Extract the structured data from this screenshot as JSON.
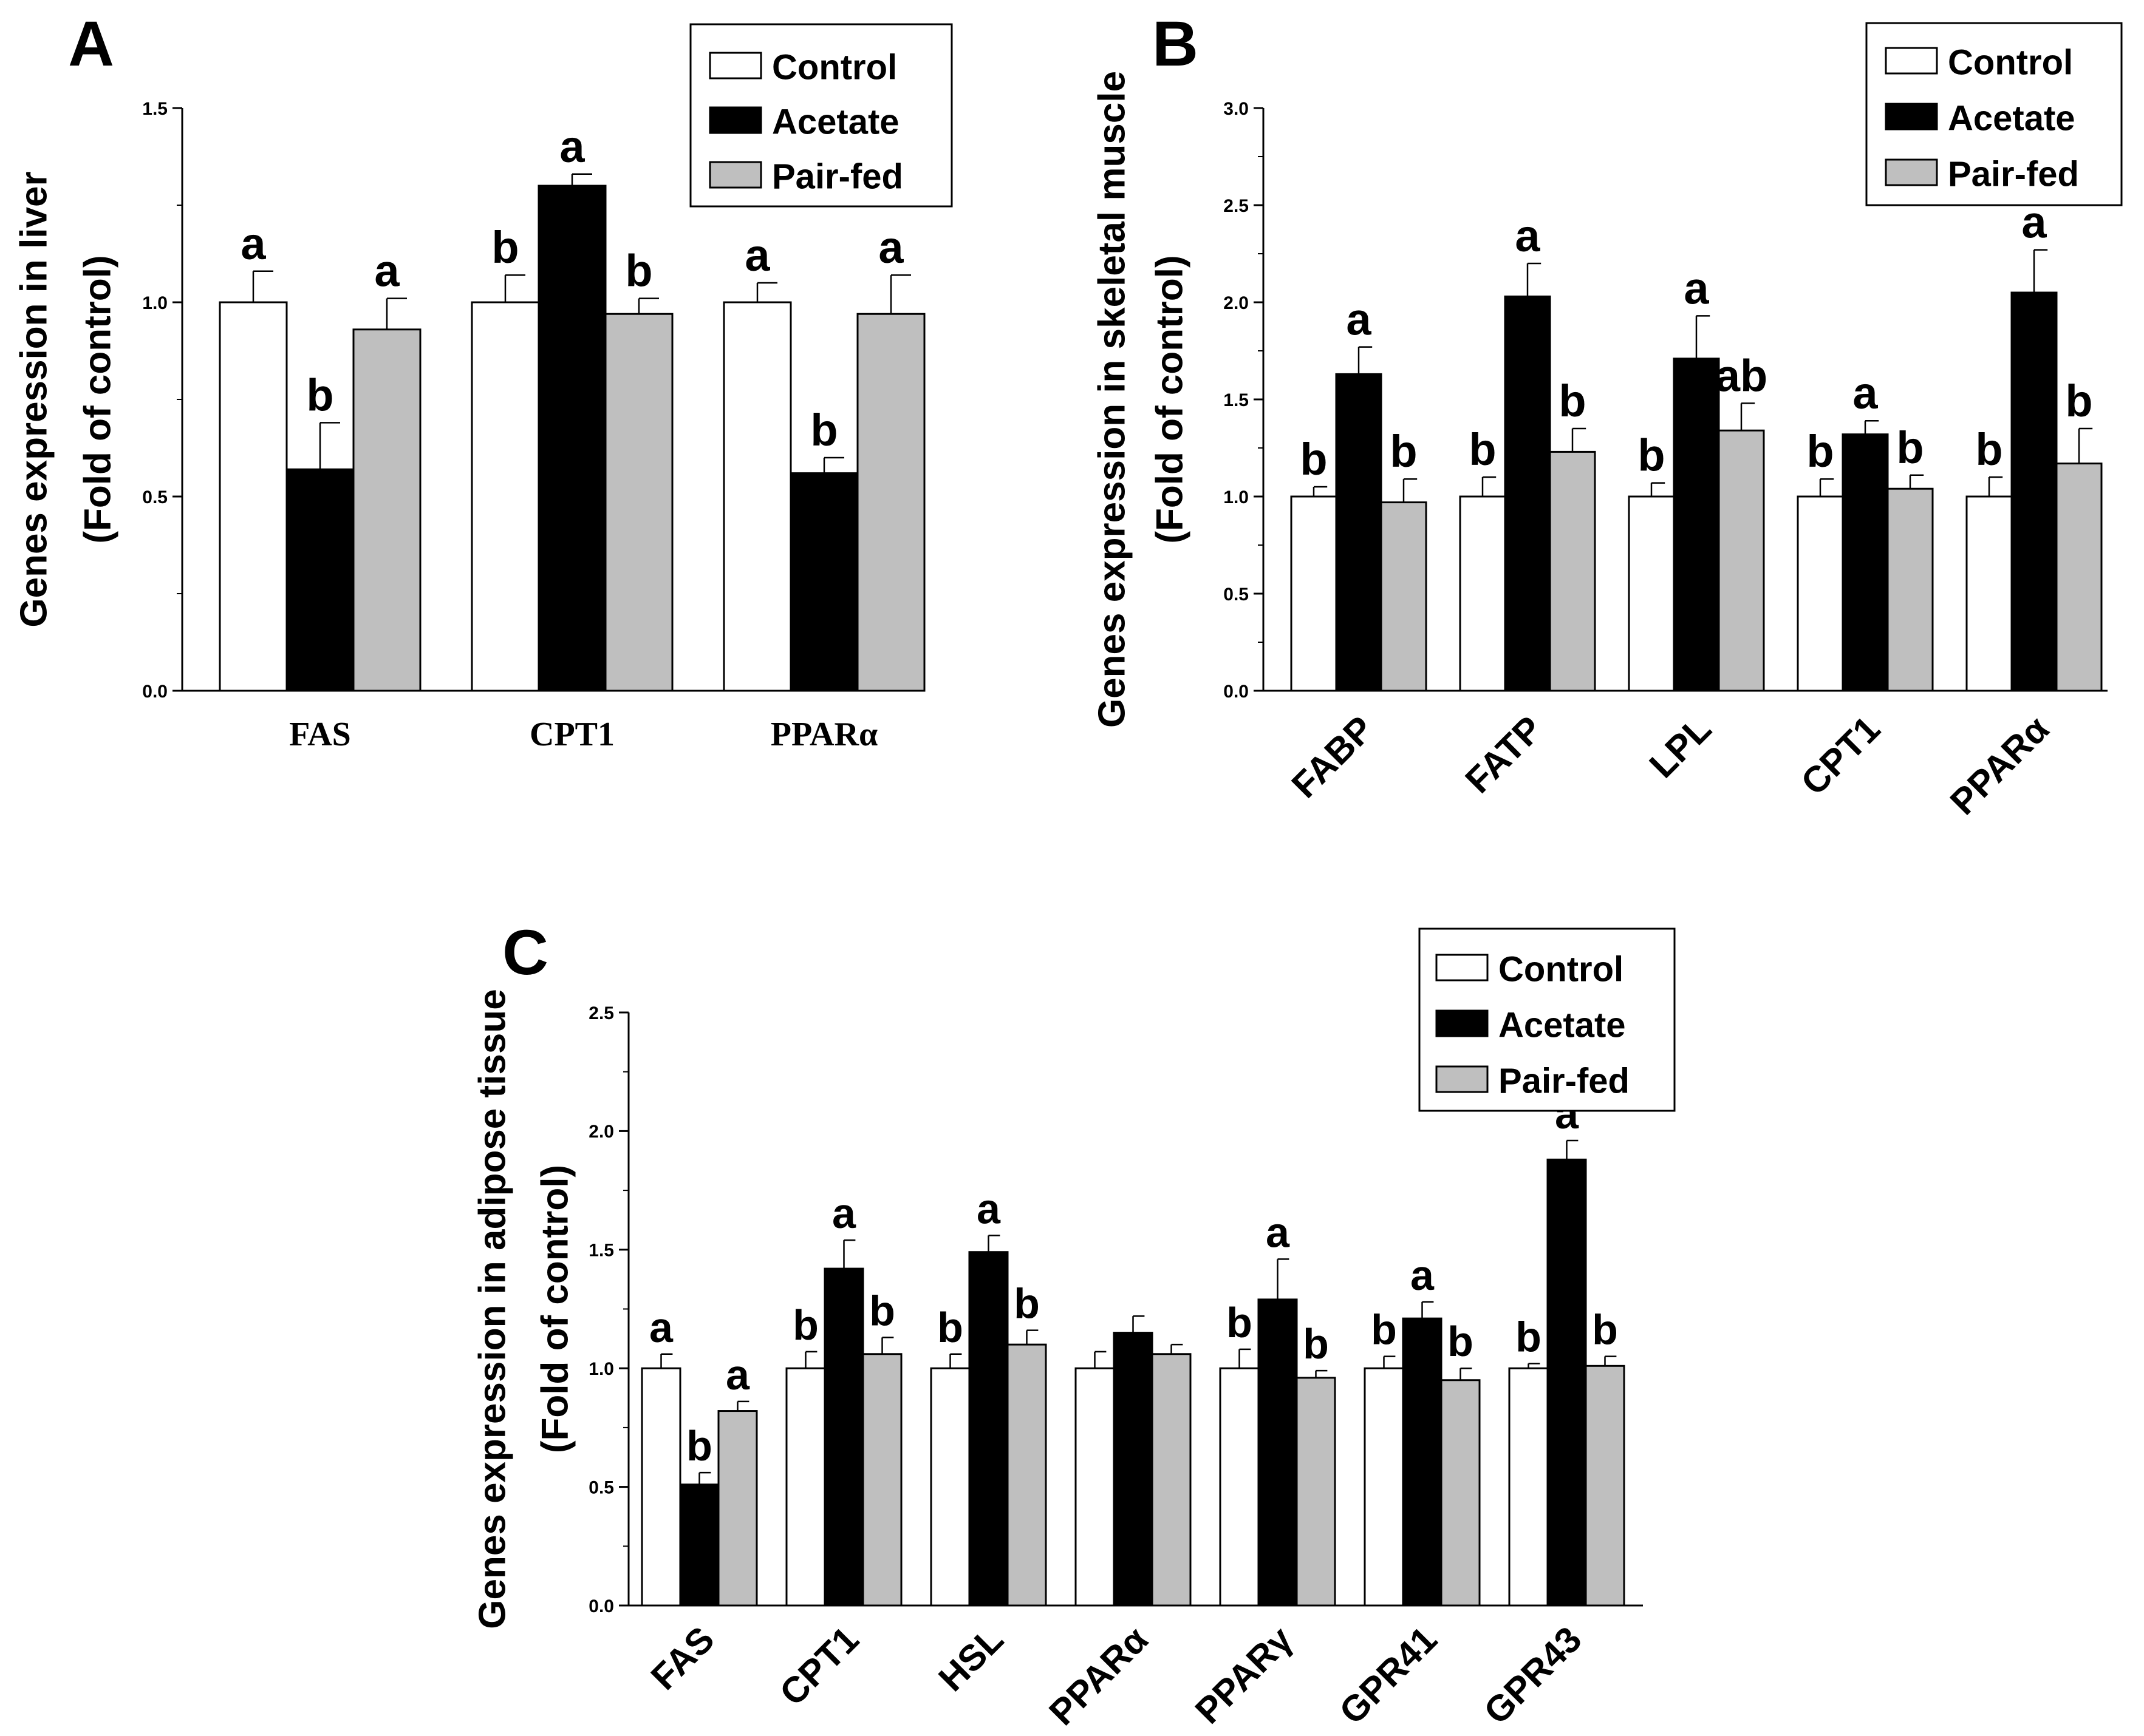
{
  "legend": [
    "Control",
    "Acetate",
    "Pair-fed"
  ],
  "colors": {
    "Control": "#ffffff",
    "Acetate": "#000000",
    "Pair-fed": "#bfbfbf"
  },
  "chart_data": [
    {
      "panel_label": "A",
      "type": "bar",
      "ylabel_line1": "Genes expression in liver",
      "ylabel_line2": "(Fold of control)",
      "ylim": [
        0,
        1.5
      ],
      "yticks": [
        "0.0",
        "0.5",
        "1.0",
        "1.5"
      ],
      "categories": [
        "FAS",
        "CPT1",
        "PPARα"
      ],
      "series": [
        {
          "name": "Control",
          "values": [
            1.0,
            1.0,
            1.0
          ],
          "errors": [
            0.08,
            0.07,
            0.05
          ],
          "letters": [
            "a",
            "b",
            "a"
          ]
        },
        {
          "name": "Acetate",
          "values": [
            0.57,
            1.3,
            0.56
          ],
          "errors": [
            0.12,
            0.03,
            0.04
          ],
          "letters": [
            "b",
            "a",
            "b"
          ]
        },
        {
          "name": "Pair-fed",
          "values": [
            0.93,
            0.97,
            0.97
          ],
          "errors": [
            0.08,
            0.04,
            0.1
          ],
          "letters": [
            "a",
            "b",
            "a"
          ]
        }
      ]
    },
    {
      "panel_label": "B",
      "type": "bar",
      "ylabel_line1": "Genes expression in skeletal muscle",
      "ylabel_line2": "(Fold of control)",
      "ylim": [
        0,
        3.0
      ],
      "yticks": [
        "0.0",
        "0.5",
        "1.0",
        "1.5",
        "2.0",
        "2.5",
        "3.0"
      ],
      "categories": [
        "FABP",
        "FATP",
        "LPL",
        "CPT1",
        "PPARα"
      ],
      "series": [
        {
          "name": "Control",
          "values": [
            1.0,
            1.0,
            1.0,
            1.0,
            1.0
          ],
          "errors": [
            0.05,
            0.1,
            0.07,
            0.09,
            0.1
          ],
          "letters": [
            "b",
            "b",
            "b",
            "b",
            "b"
          ]
        },
        {
          "name": "Acetate",
          "values": [
            1.63,
            2.03,
            1.71,
            1.32,
            2.05
          ],
          "errors": [
            0.14,
            0.17,
            0.22,
            0.07,
            0.22
          ],
          "letters": [
            "a",
            "a",
            "a",
            "a",
            "a"
          ]
        },
        {
          "name": "Pair-fed",
          "values": [
            0.97,
            1.23,
            1.34,
            1.04,
            1.17
          ],
          "errors": [
            0.12,
            0.12,
            0.14,
            0.07,
            0.18
          ],
          "letters": [
            "b",
            "b",
            "ab",
            "b",
            "b"
          ]
        }
      ]
    },
    {
      "panel_label": "C",
      "type": "bar",
      "ylabel_line1": "Genes expression in adipose tissue",
      "ylabel_line2": "(Fold of control)",
      "ylim": [
        0,
        2.5
      ],
      "yticks": [
        "0.0",
        "0.5",
        "1.0",
        "1.5",
        "2.0",
        "2.5"
      ],
      "categories": [
        "FAS",
        "CPT1",
        "HSL",
        "PPARα",
        "PPARγ",
        "GPR41",
        "GPR43"
      ],
      "series": [
        {
          "name": "Control",
          "values": [
            1.0,
            1.0,
            1.0,
            1.0,
            1.0,
            1.0,
            1.0
          ],
          "errors": [
            0.06,
            0.07,
            0.06,
            0.07,
            0.08,
            0.05,
            0.02
          ],
          "letters": [
            "a",
            "b",
            "b",
            "",
            "b",
            "b",
            "b"
          ]
        },
        {
          "name": "Acetate",
          "values": [
            0.51,
            1.42,
            1.49,
            1.15,
            1.29,
            1.21,
            1.88
          ],
          "errors": [
            0.05,
            0.12,
            0.07,
            0.07,
            0.17,
            0.07,
            0.08
          ],
          "letters": [
            "b",
            "a",
            "a",
            "",
            "a",
            "a",
            "a"
          ]
        },
        {
          "name": "Pair-fed",
          "values": [
            0.82,
            1.06,
            1.1,
            1.06,
            0.96,
            0.95,
            1.01
          ],
          "errors": [
            0.04,
            0.07,
            0.06,
            0.04,
            0.03,
            0.05,
            0.04
          ],
          "letters": [
            "a",
            "b",
            "b",
            "",
            "b",
            "b",
            "b"
          ]
        }
      ]
    }
  ]
}
